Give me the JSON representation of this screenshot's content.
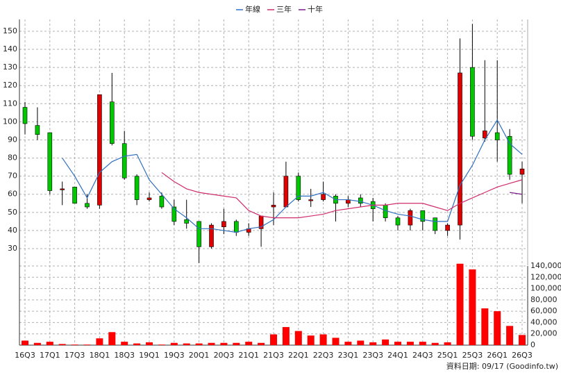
{
  "chart_data": {
    "type": "candlestick",
    "legend": [
      {
        "name": "年線",
        "color": "#2f6fc0"
      },
      {
        "name": "三年",
        "color": "#d02c6c"
      },
      {
        "name": "十年",
        "color": "#7a1a8a"
      }
    ],
    "categories": [
      "16Q3",
      null,
      "17Q1",
      null,
      "17Q3",
      null,
      "18Q1",
      null,
      "18Q3",
      null,
      "19Q1",
      null,
      "19Q3",
      null,
      "20Q1",
      null,
      "20Q3",
      null,
      "21Q1",
      null,
      "21Q3",
      null,
      "22Q1",
      null,
      "22Q3",
      null,
      "23Q1",
      null,
      "23Q3",
      null,
      "24Q1",
      null,
      "24Q3",
      null,
      "25Q1",
      null,
      "25Q3",
      null,
      "26Q1",
      null,
      "26Q3"
    ],
    "open": [
      108,
      98,
      94,
      63,
      64,
      55,
      54,
      111,
      88,
      70,
      57,
      59,
      53,
      46,
      45,
      31,
      42,
      45,
      39,
      41,
      53,
      53,
      70,
      57,
      57,
      59,
      55,
      58,
      56,
      54,
      47,
      43,
      51,
      47,
      40,
      43,
      130,
      91,
      94,
      92,
      71
    ],
    "high": [
      111,
      108,
      94,
      67,
      64,
      60,
      115,
      127,
      95,
      71,
      61,
      61,
      57,
      57,
      45,
      44,
      52,
      46,
      44,
      48,
      61,
      78,
      72,
      63,
      67,
      60,
      59,
      60,
      58,
      55,
      48,
      52,
      51,
      47,
      44,
      146,
      154,
      134,
      134,
      96,
      78
    ],
    "low": [
      93,
      90,
      60,
      54,
      55,
      52,
      52,
      87,
      68,
      54,
      56,
      52,
      43,
      41,
      22,
      30,
      38,
      37,
      37,
      31,
      43,
      53,
      56,
      53,
      56,
      45,
      53,
      53,
      45,
      45,
      40,
      40,
      40,
      38,
      37,
      35,
      90,
      89,
      78,
      68,
      55
    ],
    "close": [
      99,
      93,
      62,
      63,
      55,
      53,
      115,
      88,
      69,
      57,
      58,
      53,
      45,
      44,
      31,
      43,
      45,
      39,
      41,
      48,
      54,
      70,
      57,
      57,
      60,
      55,
      57,
      55,
      52,
      47,
      43,
      51,
      45,
      40,
      43,
      127,
      92,
      95,
      90,
      71,
      74
    ],
    "up_color": "#e00000",
    "down_color": "#00c800",
    "series": [
      {
        "name": "年線",
        "color": "#2f6fc0",
        "values": [
          null,
          null,
          null,
          80,
          70,
          58,
          72,
          78,
          81,
          82,
          68,
          60,
          52,
          47,
          41,
          41,
          40,
          39,
          41,
          42,
          46,
          53,
          59,
          59,
          61,
          57,
          57,
          56,
          54,
          51,
          49,
          48,
          46,
          45,
          45,
          65,
          76,
          90,
          101,
          88,
          82
        ]
      },
      {
        "name": "三年",
        "color": "#d02c6c",
        "values": [
          null,
          null,
          null,
          null,
          null,
          null,
          null,
          null,
          null,
          null,
          null,
          72,
          67,
          63,
          61,
          60,
          59,
          58,
          51,
          48,
          47,
          47,
          47,
          48,
          49,
          51,
          52,
          53,
          54,
          54,
          55,
          55,
          55,
          53,
          51,
          55,
          58,
          61,
          64,
          66,
          68
        ]
      },
      {
        "name": "十年",
        "color": "#7a1a8a",
        "values": [
          null,
          null,
          null,
          null,
          null,
          null,
          null,
          null,
          null,
          null,
          null,
          null,
          null,
          null,
          null,
          null,
          null,
          null,
          null,
          null,
          null,
          null,
          null,
          null,
          null,
          null,
          null,
          null,
          null,
          null,
          null,
          null,
          null,
          null,
          null,
          null,
          null,
          null,
          null,
          61,
          60
        ]
      }
    ],
    "ylim": [
      20.8,
      156.5
    ],
    "yticks": [
      30,
      40,
      50,
      60,
      70,
      80,
      90,
      100,
      110,
      120,
      130,
      140,
      150
    ],
    "volume": {
      "color": "#ff0000",
      "values": [
        8000,
        4000,
        6000,
        2000,
        1000,
        1000,
        12000,
        23000,
        6000,
        3000,
        5000,
        1000,
        4000,
        3000,
        3000,
        4000,
        4000,
        4000,
        6000,
        4000,
        19000,
        32000,
        25000,
        17000,
        19000,
        13000,
        6000,
        8000,
        5000,
        10000,
        6000,
        6000,
        6000,
        4000,
        5000,
        144000,
        134000,
        65000,
        60000,
        34000,
        18000
      ]
    },
    "y2lim": [
      0,
      140000
    ],
    "y2ticks": [
      0,
      {
        "value": 20000,
        "label": "20,000"
      },
      {
        "value": 40000,
        "label": "40,000"
      },
      {
        "value": 60000,
        "label": "60,000"
      },
      {
        "value": 80000,
        "label": "80,000"
      },
      {
        "value": 100000,
        "label": "100,000"
      },
      {
        "value": 120000,
        "label": "120,000"
      },
      {
        "value": 140000,
        "label": "140,000"
      }
    ],
    "grid": true,
    "footnote": "資料日期: 09/17 (Goodinfo.tw)"
  }
}
